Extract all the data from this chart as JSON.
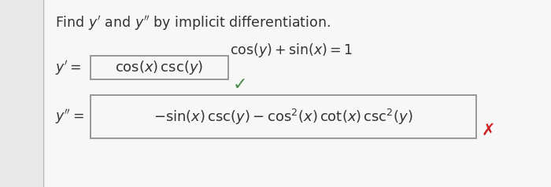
{
  "background_color": "#e8e8e8",
  "panel_color": "#f7f7f7",
  "left_border_color": "#bbbbbb",
  "title_text": "Find $y'$ and $y''$ by implicit differentiation.",
  "equation_text": "$\\mathrm{cos}(y) + \\mathrm{sin}(x) = 1$",
  "yprime_label": "$y' =$",
  "yprime_formula": "$\\mathrm{cos}(x)\\,\\mathrm{csc}(y)$",
  "ydprime_label": "$y'' =$",
  "ydprime_formula": "$-\\mathrm{sin}(x)\\,\\mathrm{csc}(y) - \\mathrm{cos}^{2}(x)\\,\\mathrm{cot}(x)\\,\\mathrm{csc}^{2}(y)$",
  "checkmark_color": "#4a8a4a",
  "xmark_color": "#cc2222",
  "box_edge_color": "#888888",
  "text_color": "#333333",
  "title_fontsize": 12.5,
  "eq_fontsize": 12.5,
  "formula_fontsize": 13,
  "label_fontsize": 12.5
}
